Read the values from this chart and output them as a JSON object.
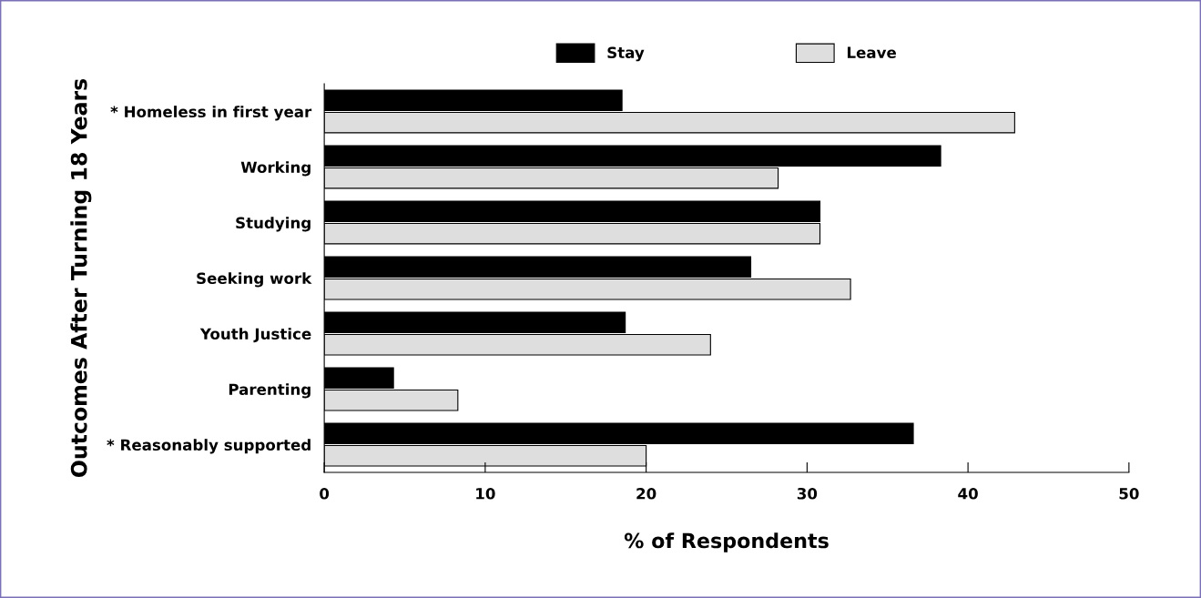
{
  "chart_data": {
    "type": "bar",
    "orientation": "horizontal",
    "xlabel": "% of Respondents",
    "ylabel": "Outcomes After Turning 18 Years",
    "categories": [
      "* Homeless in first year",
      "Working",
      "Studying",
      "Seeking work",
      "Youth Justice",
      "Parenting",
      "* Reasonably supported"
    ],
    "series": [
      {
        "name": "Stay",
        "color": "#000000",
        "values": [
          18.5,
          38.3,
          30.8,
          26.5,
          18.7,
          4.3,
          36.6
        ]
      },
      {
        "name": "Leave",
        "color": "#dedede",
        "values": [
          42.9,
          28.2,
          30.8,
          32.7,
          24.0,
          8.3,
          20.0
        ]
      }
    ],
    "xlim": [
      0,
      50
    ],
    "xticks": [
      0,
      10,
      20,
      30,
      40,
      50
    ],
    "grid": false,
    "legend": "top"
  }
}
